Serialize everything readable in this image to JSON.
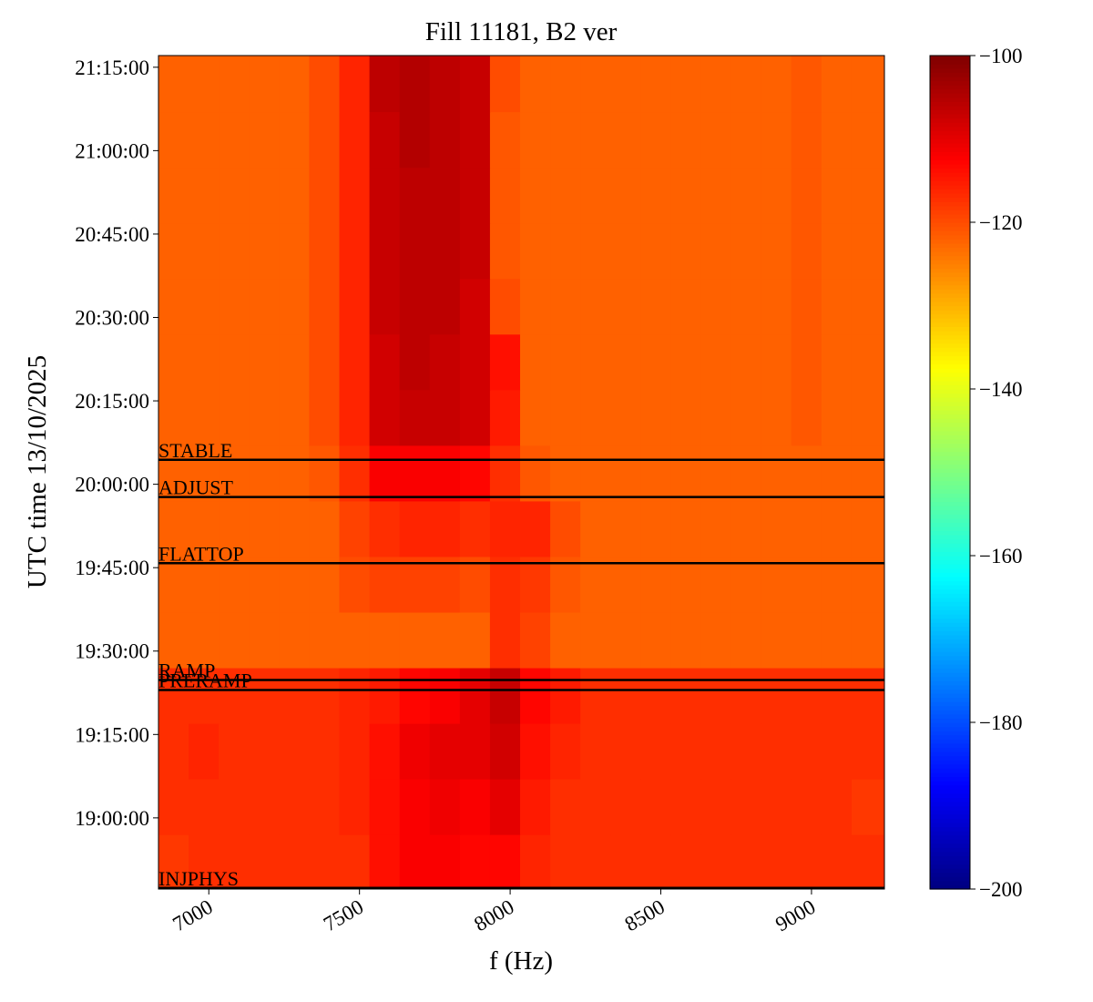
{
  "chart_data": {
    "type": "spectrogram",
    "title": "Fill 11181, B2 ver",
    "x_label": "f (Hz)",
    "y_label": "UTC time 13/10/2025",
    "xlim": [
      6833,
      9242
    ],
    "ylim": [
      1127.2,
      1277.1
    ],
    "xticks": [
      7000,
      7500,
      8000,
      8500,
      9000
    ],
    "yticks": [
      {
        "value": 1140,
        "label": "19:00:00"
      },
      {
        "value": 1155,
        "label": "19:15:00"
      },
      {
        "value": 1170,
        "label": "19:30:00"
      },
      {
        "value": 1185,
        "label": "19:45:00"
      },
      {
        "value": 1200,
        "label": "20:00:00"
      },
      {
        "value": 1215,
        "label": "20:15:00"
      },
      {
        "value": 1230,
        "label": "20:30:00"
      },
      {
        "value": 1245,
        "label": "20:45:00"
      },
      {
        "value": 1260,
        "label": "21:00:00"
      },
      {
        "value": 1275,
        "label": "21:15:00"
      }
    ],
    "colormap": "jet",
    "clim": [
      -200,
      -100
    ],
    "cticks": [
      {
        "value": -100,
        "label": "−100"
      },
      {
        "value": -120,
        "label": "−120"
      },
      {
        "value": -140,
        "label": "−140"
      },
      {
        "value": -160,
        "label": "−160"
      },
      {
        "value": -180,
        "label": "−180"
      },
      {
        "value": -200,
        "label": "−200"
      }
    ],
    "xbins": [
      6833,
      6933,
      7033,
      7133,
      7233,
      7333,
      7433,
      7533,
      7633,
      7733,
      7833,
      7933,
      8033,
      8133,
      8233,
      8333,
      8433,
      8533,
      8633,
      8733,
      8833,
      8933,
      9033,
      9133,
      9242
    ],
    "ybins": [
      1127.2,
      1137,
      1147,
      1157,
      1167,
      1177,
      1187,
      1197,
      1207,
      1217,
      1227,
      1237,
      1247,
      1257,
      1267,
      1277.1
    ],
    "z": [
      [
        -118,
        -117,
        -117,
        -117,
        -117,
        -117,
        -117,
        -114,
        -112,
        -112,
        -113,
        -113,
        -116,
        -117,
        -117,
        -117,
        -117,
        -117,
        -117,
        -117,
        -117,
        -117,
        -117,
        -117
      ],
      [
        -117,
        -117,
        -117,
        -117,
        -117,
        -117,
        -116,
        -114,
        -112,
        -111,
        -112,
        -110,
        -115,
        -117,
        -117,
        -117,
        -117,
        -117,
        -117,
        -117,
        -117,
        -117,
        -117,
        -118
      ],
      [
        -117,
        -116,
        -117,
        -117,
        -117,
        -117,
        -116,
        -114,
        -111,
        -110,
        -110,
        -108,
        -114,
        -116,
        -117,
        -117,
        -117,
        -117,
        -117,
        -117,
        -117,
        -117,
        -117,
        -117
      ],
      [
        -117,
        -117,
        -117,
        -117,
        -117,
        -117,
        -116,
        -115,
        -113,
        -112,
        -110,
        -107,
        -113,
        -115,
        -117,
        -117,
        -117,
        -117,
        -117,
        -117,
        -117,
        -117,
        -117,
        -117
      ],
      [
        -122,
        -122,
        -122,
        -122,
        -122,
        -122,
        -122,
        -122,
        -122,
        -122,
        -122,
        -117,
        -119,
        -122,
        -122,
        -122,
        -122,
        -122,
        -122,
        -122,
        -122,
        -122,
        -122,
        -122
      ],
      [
        -122,
        -122,
        -122,
        -122,
        -122,
        -122,
        -120,
        -119,
        -119,
        -119,
        -120,
        -117,
        -118,
        -121,
        -122,
        -122,
        -122,
        -122,
        -122,
        -122,
        -122,
        -122,
        -122,
        -122
      ],
      [
        -122,
        -122,
        -122,
        -122,
        -122,
        -122,
        -119,
        -117,
        -116,
        -116,
        -117,
        -116,
        -116,
        -120,
        -122,
        -122,
        -122,
        -122,
        -122,
        -122,
        -122,
        -122,
        -122,
        -122
      ],
      [
        -122,
        -122,
        -122,
        -122,
        -122,
        -121,
        -117,
        -112,
        -112,
        -112,
        -113,
        -117,
        -121,
        -122,
        -122,
        -122,
        -122,
        -122,
        -122,
        -122,
        -122,
        -122,
        -122,
        -122
      ],
      [
        -122,
        -122,
        -122,
        -122,
        -122,
        -120,
        -116,
        -108,
        -107,
        -107,
        -108,
        -115,
        -122,
        -122,
        -122,
        -122,
        -122,
        -122,
        -122,
        -122,
        -122,
        -121,
        -122,
        -122
      ],
      [
        -122,
        -122,
        -122,
        -122,
        -122,
        -120,
        -116,
        -108,
        -106,
        -107,
        -108,
        -114,
        -122,
        -122,
        -122,
        -122,
        -122,
        -122,
        -122,
        -122,
        -122,
        -121,
        -122,
        -122
      ],
      [
        -122,
        -122,
        -122,
        -122,
        -122,
        -120,
        -116,
        -107,
        -106,
        -106,
        -108,
        -120,
        -122,
        -122,
        -122,
        -122,
        -122,
        -122,
        -122,
        -122,
        -122,
        -121,
        -122,
        -122
      ],
      [
        -122,
        -122,
        -122,
        -122,
        -122,
        -120,
        -116,
        -107,
        -106,
        -106,
        -107,
        -121,
        -122,
        -122,
        -122,
        -122,
        -122,
        -122,
        -122,
        -122,
        -122,
        -121,
        -122,
        -122
      ],
      [
        -122,
        -122,
        -122,
        -122,
        -122,
        -120,
        -116,
        -107,
        -106,
        -106,
        -107,
        -121,
        -122,
        -122,
        -122,
        -122,
        -122,
        -122,
        -122,
        -122,
        -122,
        -121,
        -122,
        -122
      ],
      [
        -122,
        -122,
        -122,
        -122,
        -122,
        -120,
        -116,
        -107,
        -105,
        -106,
        -107,
        -121,
        -122,
        -122,
        -122,
        -122,
        -122,
        -122,
        -122,
        -122,
        -122,
        -121,
        -122,
        -122
      ],
      [
        -122,
        -122,
        -122,
        -122,
        -122,
        -120,
        -116,
        -106,
        -105,
        -106,
        -107,
        -120,
        -122,
        -122,
        -122,
        -122,
        -122,
        -122,
        -122,
        -122,
        -122,
        -121,
        -122,
        -122
      ]
    ],
    "events": [
      {
        "label": "STABLE",
        "value": 1204.4
      },
      {
        "label": "ADJUST",
        "value": 1197.7
      },
      {
        "label": "FLATTOP",
        "value": 1185.8
      },
      {
        "label": "RAMP",
        "value": 1164.8
      },
      {
        "label": "PRERAMP",
        "value": 1163.0
      },
      {
        "label": "INJPHYS",
        "value": 1127.4
      }
    ]
  }
}
